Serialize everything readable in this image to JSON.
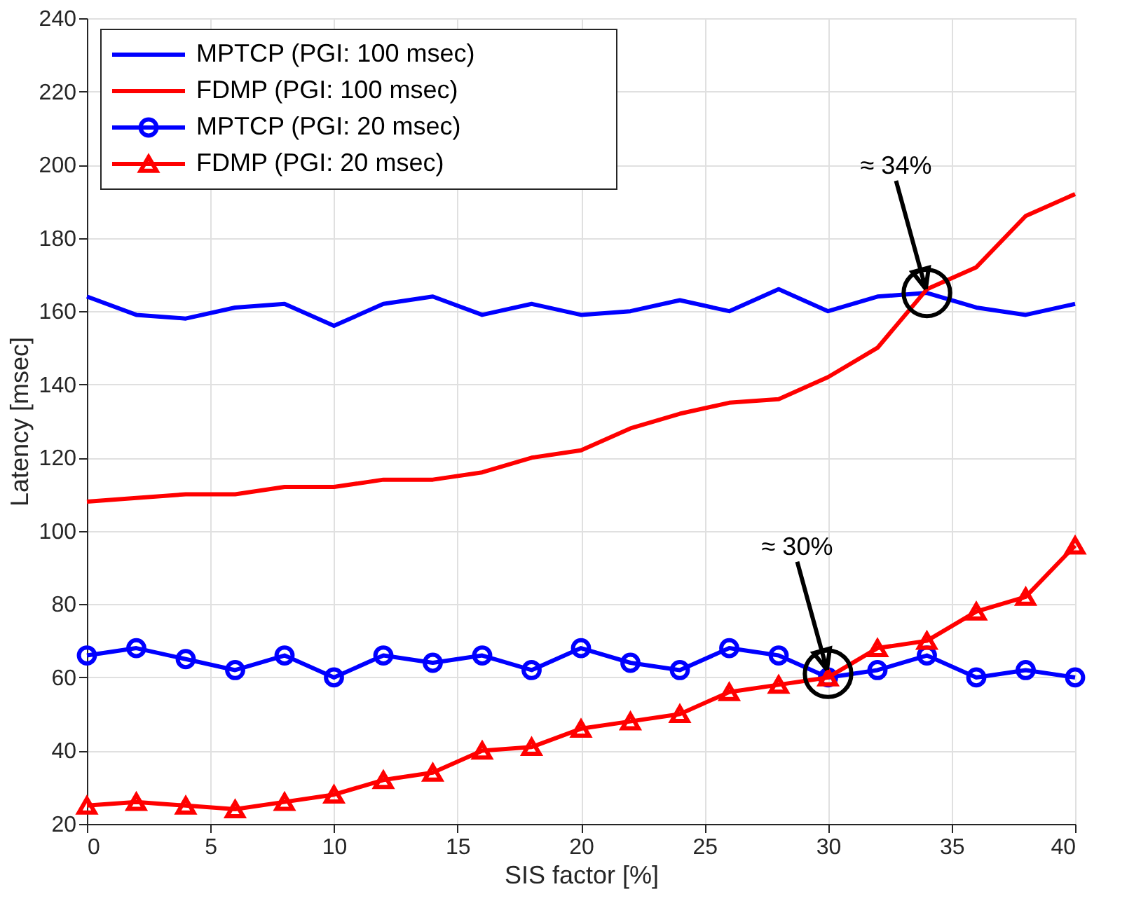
{
  "chart_data": {
    "type": "line",
    "xlabel": "SIS factor [%]",
    "ylabel": "Latency [msec]",
    "x": [
      0,
      2,
      4,
      6,
      8,
      10,
      12,
      14,
      16,
      18,
      20,
      22,
      24,
      26,
      28,
      30,
      32,
      34,
      36,
      38,
      40
    ],
    "series": [
      {
        "name": "MPTCP (PGI: 100 msec)",
        "color": "#0000ff",
        "marker": "none",
        "values": [
          164,
          159,
          158,
          161,
          162,
          156,
          162,
          164,
          159,
          162,
          159,
          160,
          163,
          160,
          166,
          160,
          164,
          165,
          161,
          159,
          162
        ]
      },
      {
        "name": "FDMP (PGI: 100 msec)",
        "color": "#ff0000",
        "marker": "none",
        "values": [
          108,
          109,
          110,
          110,
          112,
          112,
          114,
          114,
          116,
          120,
          122,
          128,
          132,
          135,
          136,
          142,
          150,
          166,
          172,
          186,
          192
        ]
      },
      {
        "name": "MPTCP (PGI: 20 msec)",
        "color": "#0000ff",
        "marker": "circle",
        "values": [
          66,
          68,
          65,
          62,
          66,
          60,
          66,
          64,
          66,
          62,
          68,
          64,
          62,
          68,
          66,
          60,
          62,
          66,
          60,
          62,
          60
        ]
      },
      {
        "name": "FDMP (PGI: 20 msec)",
        "color": "#ff0000",
        "marker": "triangle",
        "values": [
          25,
          26,
          25,
          24,
          26,
          28,
          32,
          34,
          40,
          41,
          46,
          48,
          50,
          56,
          58,
          60,
          68,
          70,
          78,
          82,
          96
        ]
      }
    ],
    "xlim": [
      0,
      40
    ],
    "xticks": [
      0,
      5,
      10,
      15,
      20,
      25,
      30,
      35,
      40
    ],
    "ylim": [
      20,
      240
    ],
    "yticks": [
      20,
      40,
      60,
      80,
      100,
      120,
      140,
      160,
      180,
      200,
      220,
      240
    ],
    "grid": true,
    "legend": "top left",
    "line_style": "solid",
    "annotations": [
      {
        "text": "≈ 34%",
        "x": 34,
        "y": 165
      },
      {
        "text": "≈ 30%",
        "x": 30,
        "y": 61
      }
    ]
  }
}
